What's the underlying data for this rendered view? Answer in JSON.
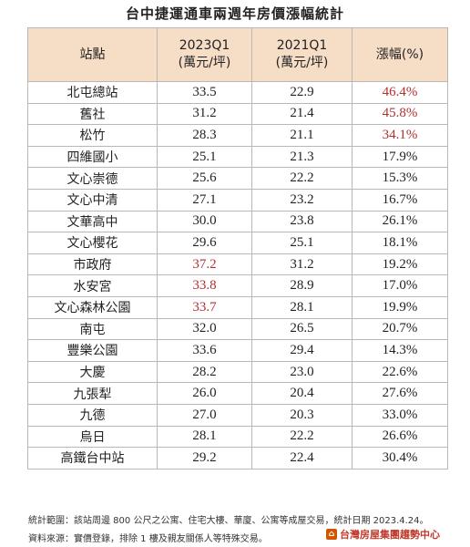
{
  "title": "台中捷運通車兩週年房價漲幅統計",
  "headers": {
    "station": "站點",
    "q2023_line1": "2023Q1",
    "q2023_line2": "(萬元/坪)",
    "q2021_line1": "2021Q1",
    "q2021_line2": "(萬元/坪)",
    "change": "漲幅(%)"
  },
  "colors": {
    "header_bg": "#f6ddc6",
    "highlight": "#b03030"
  },
  "rows": [
    {
      "station": "北屯總站",
      "p2023": "33.5",
      "p2021": "22.9",
      "change": "46.4%",
      "hl_2023": false,
      "hl_change": true
    },
    {
      "station": "舊社",
      "p2023": "31.2",
      "p2021": "21.4",
      "change": "45.8%",
      "hl_2023": false,
      "hl_change": true
    },
    {
      "station": "松竹",
      "p2023": "28.3",
      "p2021": "21.1",
      "change": "34.1%",
      "hl_2023": false,
      "hl_change": true
    },
    {
      "station": "四維國小",
      "p2023": "25.1",
      "p2021": "21.3",
      "change": "17.9%",
      "hl_2023": false,
      "hl_change": false
    },
    {
      "station": "文心崇德",
      "p2023": "25.6",
      "p2021": "22.2",
      "change": "15.3%",
      "hl_2023": false,
      "hl_change": false
    },
    {
      "station": "文心中清",
      "p2023": "27.1",
      "p2021": "23.2",
      "change": "16.7%",
      "hl_2023": false,
      "hl_change": false
    },
    {
      "station": "文華高中",
      "p2023": "30.0",
      "p2021": "23.8",
      "change": "26.1%",
      "hl_2023": false,
      "hl_change": false
    },
    {
      "station": "文心櫻花",
      "p2023": "29.6",
      "p2021": "25.1",
      "change": "18.1%",
      "hl_2023": false,
      "hl_change": false
    },
    {
      "station": "市政府",
      "p2023": "37.2",
      "p2021": "31.2",
      "change": "19.2%",
      "hl_2023": true,
      "hl_change": false
    },
    {
      "station": "水安宮",
      "p2023": "33.8",
      "p2021": "28.9",
      "change": "17.0%",
      "hl_2023": true,
      "hl_change": false
    },
    {
      "station": "文心森林公園",
      "p2023": "33.7",
      "p2021": "28.1",
      "change": "19.9%",
      "hl_2023": true,
      "hl_change": false
    },
    {
      "station": "南屯",
      "p2023": "32.0",
      "p2021": "26.5",
      "change": "20.7%",
      "hl_2023": false,
      "hl_change": false
    },
    {
      "station": "豐樂公園",
      "p2023": "33.6",
      "p2021": "29.4",
      "change": "14.3%",
      "hl_2023": false,
      "hl_change": false
    },
    {
      "station": "大慶",
      "p2023": "28.2",
      "p2021": "23.0",
      "change": "22.6%",
      "hl_2023": false,
      "hl_change": false
    },
    {
      "station": "九張犁",
      "p2023": "26.0",
      "p2021": "20.4",
      "change": "27.6%",
      "hl_2023": false,
      "hl_change": false
    },
    {
      "station": "九德",
      "p2023": "27.0",
      "p2021": "20.3",
      "change": "33.0%",
      "hl_2023": false,
      "hl_change": false
    },
    {
      "station": "烏日",
      "p2023": "28.1",
      "p2021": "22.2",
      "change": "26.6%",
      "hl_2023": false,
      "hl_change": false
    },
    {
      "station": "高鐵台中站",
      "p2023": "29.2",
      "p2021": "22.4",
      "change": "30.4%",
      "hl_2023": false,
      "hl_change": false
    }
  ],
  "footer": {
    "line1": "統計範圍：該站周邊 800 公尺之公寓、住宅大樓、華廈、公寓等成屋交易，統計日期 2023.4.24。",
    "line2": "資料來源：實價登錄，排除 1 樓及親友關係人等特殊交易。",
    "logo_text": "台灣房屋集團趨勢中心"
  }
}
